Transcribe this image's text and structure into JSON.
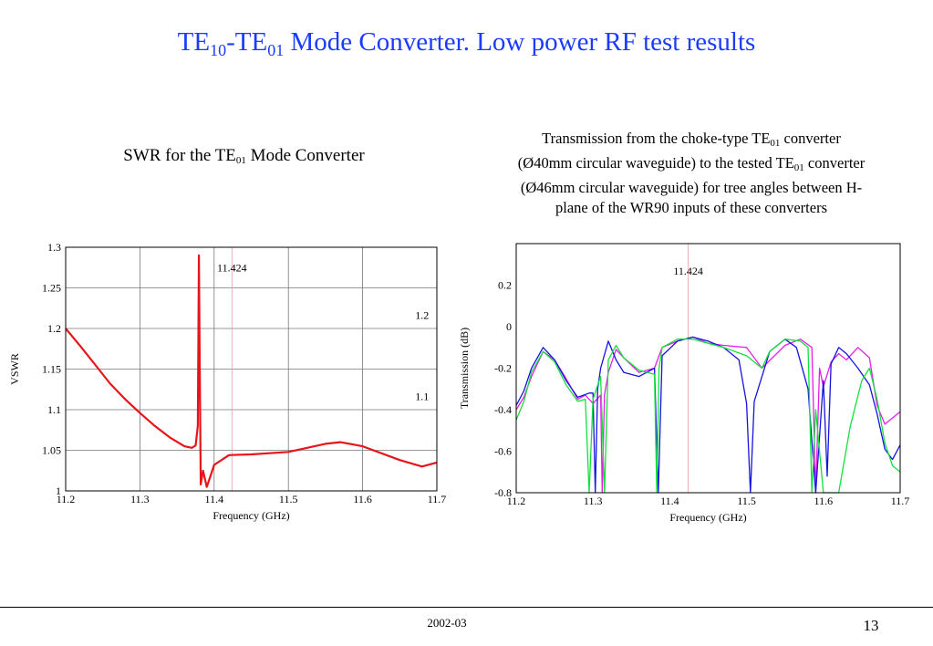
{
  "slide": {
    "title_parts": {
      "a": "TE",
      "a_sub": "10",
      "dash": "-TE",
      "b_sub": "01",
      "rest": " Mode Converter. Low power RF test results"
    },
    "left_caption": {
      "pre": "SWR for the TE",
      "sub": "01",
      "post": " Mode Converter"
    },
    "right_caption": {
      "l1a": "Transmission from the choke-type TE",
      "l1sub": "01",
      "l1b": " converter",
      "l2a": "(Ø40mm circular waveguide) to the tested TE",
      "l2sub": "01",
      "l2b": " converter",
      "l3": "(Ø46mm circular waveguide) for tree angles between H-",
      "l4": "plane of the WR90 inputs of these converters"
    },
    "footer": {
      "date": "2002-03",
      "page": "13"
    }
  },
  "chart_data": [
    {
      "type": "line",
      "xlabel": "Frequency (GHz)",
      "ylabel": "VSWR",
      "xlim": [
        11.2,
        11.7
      ],
      "ylim": [
        1.0,
        1.3
      ],
      "xticks": [
        "11.2",
        "11.3",
        "11.4",
        "11.5",
        "11.6",
        "11.7"
      ],
      "yticks": [
        "1",
        "1.05",
        "1.1",
        "1.15",
        "1.2",
        "1.25",
        "1.3"
      ],
      "grid": true,
      "annotations": [
        {
          "text": "11.424",
          "x": 11.424,
          "y": 1.27
        },
        {
          "text": "1.2",
          "x": 11.68,
          "y": 1.212
        },
        {
          "text": "1.1",
          "x": 11.68,
          "y": 1.112
        }
      ],
      "marker_line_x": 11.424,
      "series": [
        {
          "color": "#e8141b",
          "x": [
            11.2,
            11.22,
            11.24,
            11.26,
            11.28,
            11.3,
            11.32,
            11.34,
            11.36,
            11.37,
            11.375,
            11.378,
            11.3795,
            11.3805,
            11.382,
            11.385,
            11.39,
            11.395,
            11.4,
            11.42,
            11.45,
            11.5,
            11.55,
            11.57,
            11.6,
            11.65,
            11.68,
            11.7
          ],
          "y": [
            1.2,
            1.178,
            1.155,
            1.132,
            1.113,
            1.096,
            1.08,
            1.066,
            1.055,
            1.053,
            1.056,
            1.08,
            1.29,
            1.17,
            1.008,
            1.025,
            1.005,
            1.018,
            1.032,
            1.044,
            1.045,
            1.048,
            1.058,
            1.06,
            1.055,
            1.038,
            1.03,
            1.035
          ]
        }
      ]
    },
    {
      "type": "line",
      "xlabel": "Frequency (GHz)",
      "ylabel": "Transmission (dB)",
      "xlim": [
        11.2,
        11.7
      ],
      "ylim": [
        -0.8,
        0.4
      ],
      "xticks": [
        "11.2",
        "11.3",
        "11.4",
        "11.5",
        "11.6",
        "11.7"
      ],
      "yticks": [
        "-0.8",
        "-0.6",
        "-0.4",
        "-0.2",
        "0",
        "0.2"
      ],
      "grid": false,
      "annotations": [
        {
          "text": "11.424",
          "x": 11.424,
          "y": 0.25
        }
      ],
      "marker_line_x": 11.424,
      "series": [
        {
          "color": "#e81ee8",
          "x": [
            11.2,
            11.21,
            11.22,
            11.235,
            11.25,
            11.265,
            11.28,
            11.29,
            11.3,
            11.31,
            11.312,
            11.315,
            11.32,
            11.33,
            11.34,
            11.36,
            11.38,
            11.39,
            11.41,
            11.43,
            11.45,
            11.47,
            11.5,
            11.52,
            11.55,
            11.57,
            11.585,
            11.59,
            11.595,
            11.6,
            11.61,
            11.62,
            11.63,
            11.645,
            11.66,
            11.67,
            11.68,
            11.7
          ],
          "y": [
            -0.4,
            -0.34,
            -0.24,
            -0.12,
            -0.16,
            -0.25,
            -0.35,
            -0.33,
            -0.37,
            -0.33,
            -0.8,
            -0.33,
            -0.22,
            -0.11,
            -0.15,
            -0.22,
            -0.2,
            -0.1,
            -0.07,
            -0.05,
            -0.08,
            -0.09,
            -0.1,
            -0.2,
            -0.09,
            -0.06,
            -0.1,
            -0.8,
            -0.2,
            -0.29,
            -0.17,
            -0.13,
            -0.16,
            -0.1,
            -0.15,
            -0.38,
            -0.47,
            -0.41
          ]
        },
        {
          "color": "#1414e0",
          "x": [
            11.2,
            11.21,
            11.22,
            11.235,
            11.25,
            11.265,
            11.28,
            11.295,
            11.3,
            11.303,
            11.306,
            11.31,
            11.32,
            11.33,
            11.34,
            11.36,
            11.38,
            11.385,
            11.39,
            11.41,
            11.43,
            11.45,
            11.47,
            11.49,
            11.5,
            11.505,
            11.51,
            11.53,
            11.55,
            11.565,
            11.58,
            11.59,
            11.6,
            11.605,
            11.61,
            11.62,
            11.63,
            11.645,
            11.66,
            11.67,
            11.68,
            11.69,
            11.7
          ],
          "y": [
            -0.38,
            -0.31,
            -0.2,
            -0.1,
            -0.16,
            -0.26,
            -0.34,
            -0.32,
            -0.32,
            -0.8,
            -0.3,
            -0.2,
            -0.07,
            -0.16,
            -0.22,
            -0.24,
            -0.2,
            -0.8,
            -0.14,
            -0.07,
            -0.05,
            -0.07,
            -0.1,
            -0.16,
            -0.37,
            -0.8,
            -0.36,
            -0.12,
            -0.06,
            -0.1,
            -0.3,
            -0.8,
            -0.26,
            -0.72,
            -0.18,
            -0.1,
            -0.13,
            -0.2,
            -0.28,
            -0.42,
            -0.59,
            -0.64,
            -0.57
          ]
        },
        {
          "color": "#14e03c",
          "x": [
            11.2,
            11.21,
            11.22,
            11.235,
            11.25,
            11.265,
            11.28,
            11.29,
            11.295,
            11.3,
            11.31,
            11.315,
            11.32,
            11.33,
            11.34,
            11.36,
            11.38,
            11.383,
            11.386,
            11.39,
            11.41,
            11.43,
            11.45,
            11.47,
            11.5,
            11.52,
            11.53,
            11.55,
            11.57,
            11.58,
            11.585,
            11.59,
            11.6,
            11.62,
            11.635,
            11.65,
            11.66,
            11.67,
            11.68,
            11.69,
            11.7
          ],
          "y": [
            -0.45,
            -0.36,
            -0.22,
            -0.12,
            -0.17,
            -0.28,
            -0.36,
            -0.35,
            -0.8,
            -0.35,
            -0.24,
            -0.8,
            -0.16,
            -0.09,
            -0.15,
            -0.21,
            -0.23,
            -0.8,
            -0.2,
            -0.1,
            -0.06,
            -0.06,
            -0.08,
            -0.1,
            -0.14,
            -0.2,
            -0.12,
            -0.06,
            -0.07,
            -0.1,
            -0.8,
            -0.4,
            -0.8,
            -0.8,
            -0.48,
            -0.26,
            -0.2,
            -0.35,
            -0.56,
            -0.67,
            -0.7
          ]
        }
      ]
    }
  ]
}
